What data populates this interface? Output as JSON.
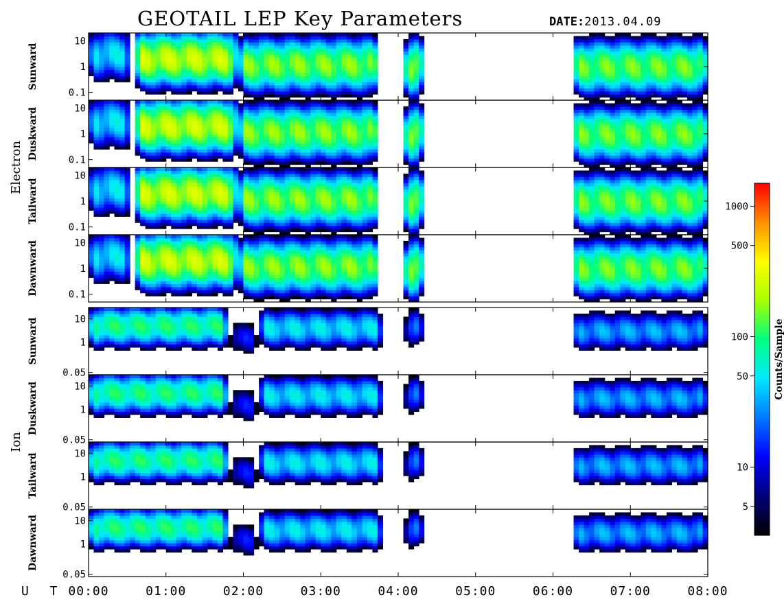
{
  "title": "GEOTAIL LEP Key Parameters",
  "date": {
    "label": "DATE:",
    "value": "2013.04.09"
  },
  "groups": [
    {
      "label": "Electron",
      "panels": [
        0,
        1,
        2,
        3
      ]
    },
    {
      "label": "Ion",
      "panels": [
        4,
        5,
        6,
        7
      ]
    }
  ],
  "colorbar": {
    "label": "Counts/Sample",
    "scale": "log",
    "range": [
      3,
      1500
    ],
    "ticks": [
      {
        "value": 5,
        "label": "5"
      },
      {
        "value": 10,
        "label": "10"
      },
      {
        "value": 50,
        "label": "50"
      },
      {
        "value": 100,
        "label": "100"
      },
      {
        "value": 500,
        "label": "500"
      },
      {
        "value": 1000,
        "label": "1000"
      }
    ],
    "colormap": [
      "#000000",
      "#00007a",
      "#0000ff",
      "#0078ff",
      "#00e8ff",
      "#00ff80",
      "#a8ff00",
      "#ffff00",
      "#ff9000",
      "#ff0000"
    ]
  },
  "chart_data": {
    "type": "heatmap",
    "title": "GEOTAIL LEP Key Parameters",
    "xlabel": "U T",
    "x_ticks": [
      "00:00",
      "01:00",
      "02:00",
      "03:00",
      "04:00",
      "05:00",
      "06:00",
      "07:00",
      "08:00"
    ],
    "xlim_hours": [
      0,
      8
    ],
    "data_gaps_hours": [
      [
        5.18,
        6.22
      ]
    ],
    "panels": [
      {
        "species": "Electron",
        "direction": "Sunward",
        "ylim": [
          0.05,
          20
        ],
        "yscale": "log",
        "y_ticks": [
          {
            "value": 10,
            "label": "10"
          },
          {
            "value": 1,
            "label": "1"
          },
          {
            "value": 0.1,
            "label": "0.1"
          }
        ]
      },
      {
        "species": "Electron",
        "direction": "Duskward",
        "ylim": [
          0.05,
          20
        ],
        "yscale": "log",
        "y_ticks": [
          {
            "value": 10,
            "label": "10"
          },
          {
            "value": 1,
            "label": "1"
          },
          {
            "value": 0.1,
            "label": "0.1"
          }
        ]
      },
      {
        "species": "Electron",
        "direction": "Tailward",
        "ylim": [
          0.05,
          20
        ],
        "yscale": "log",
        "y_ticks": [
          {
            "value": 10,
            "label": "10"
          },
          {
            "value": 1,
            "label": "1"
          },
          {
            "value": 0.1,
            "label": "0.1"
          }
        ]
      },
      {
        "species": "Electron",
        "direction": "Dawnward",
        "ylim": [
          0.05,
          20
        ],
        "yscale": "log",
        "y_ticks": [
          {
            "value": 10,
            "label": "10"
          },
          {
            "value": 1,
            "label": "1"
          },
          {
            "value": 0.1,
            "label": "0.1"
          }
        ]
      },
      {
        "species": "Ion",
        "direction": "Sunward",
        "ylim": [
          0.04,
          30
        ],
        "yscale": "log",
        "y_ticks": [
          {
            "value": 10,
            "label": "10"
          },
          {
            "value": 1,
            "label": "1"
          },
          {
            "value": 0.05,
            "label": "0.05"
          }
        ]
      },
      {
        "species": "Ion",
        "direction": "Duskward",
        "ylim": [
          0.04,
          30
        ],
        "yscale": "log",
        "y_ticks": [
          {
            "value": 10,
            "label": "10"
          },
          {
            "value": 1,
            "label": "1"
          },
          {
            "value": 0.05,
            "label": "0.05"
          }
        ]
      },
      {
        "species": "Ion",
        "direction": "Tailward",
        "ylim": [
          0.04,
          30
        ],
        "yscale": "log",
        "y_ticks": [
          {
            "value": 10,
            "label": "10"
          },
          {
            "value": 1,
            "label": "1"
          },
          {
            "value": 0.05,
            "label": "0.05"
          }
        ]
      },
      {
        "species": "Ion",
        "direction": "Dawnward",
        "ylim": [
          0.04,
          30
        ],
        "yscale": "log",
        "y_ticks": [
          {
            "value": 10,
            "label": "10"
          },
          {
            "value": 1,
            "label": "1"
          },
          {
            "value": 0.05,
            "label": "0.05"
          }
        ]
      }
    ],
    "features": {
      "electron": [
        {
          "t": [
            0.0,
            0.55
          ],
          "y_center": 3,
          "level": 60
        },
        {
          "t": [
            0.6,
            1.9
          ],
          "y_center": 2,
          "level": 300
        },
        {
          "t": [
            1.95,
            3.75
          ],
          "y_center": 1.2,
          "level": 200
        },
        {
          "t": [
            4.1,
            4.3
          ],
          "y_center": 1,
          "level": 300
        },
        {
          "t": [
            6.25,
            8.0
          ],
          "y_center": 1,
          "level": 180
        }
      ],
      "ion": [
        {
          "t": [
            0.0,
            1.8
          ],
          "y_center": 5,
          "level": 120
        },
        {
          "t": [
            1.8,
            2.2
          ],
          "y_center": 1.5,
          "level": 15
        },
        {
          "t": [
            2.2,
            3.8
          ],
          "y_center": 4,
          "level": 60
        },
        {
          "t": [
            4.1,
            4.3
          ],
          "y_center": 4,
          "level": 40
        },
        {
          "t": [
            6.25,
            8.0
          ],
          "y_center": 3,
          "level": 40
        }
      ]
    }
  }
}
